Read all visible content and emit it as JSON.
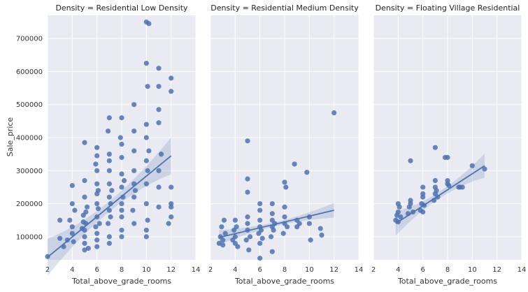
{
  "chart_data": {
    "type": "scatter",
    "facet_variable": "Density",
    "colors": {
      "point": "#4c72b0",
      "line": "#4c72b0",
      "band": "#4c72b0",
      "panel_bg": "#eaeaf2",
      "grid": "#ffffff"
    },
    "xlabel": "Total_above_grade_rooms",
    "ylabel": "Sale_price",
    "xlim": [
      2,
      14
    ],
    "ylim": [
      30000,
      770000
    ],
    "xticks": [
      2,
      4,
      6,
      8,
      10,
      12,
      14
    ],
    "yticks": [
      100000,
      200000,
      300000,
      400000,
      500000,
      600000,
      700000
    ],
    "grid": true,
    "panels": [
      {
        "title": "Density = Residential Low Density",
        "regression": {
          "x": [
            2,
            12
          ],
          "y": [
            38000,
            345000
          ]
        },
        "points": [
          [
            2,
            40000
          ],
          [
            3,
            150000
          ],
          [
            3,
            95000
          ],
          [
            3.3,
            70000
          ],
          [
            3.6,
            90000
          ],
          [
            3.8,
            150000
          ],
          [
            4,
            130000
          ],
          [
            4,
            110000
          ],
          [
            4,
            200000
          ],
          [
            4,
            255000
          ],
          [
            4.2,
            180000
          ],
          [
            4.1,
            85000
          ],
          [
            4.9,
            165000
          ],
          [
            5,
            220000
          ],
          [
            5,
            270000
          ],
          [
            5,
            120000
          ],
          [
            5,
            100000
          ],
          [
            5,
            80000
          ],
          [
            5,
            60000
          ],
          [
            5,
            385000
          ],
          [
            5.1,
            140000
          ],
          [
            5.2,
            190000
          ],
          [
            5.3,
            65000
          ],
          [
            4.8,
            125000
          ],
          [
            4.9,
            145000
          ],
          [
            5.1,
            175000
          ],
          [
            5.9,
            130000
          ],
          [
            6,
            160000
          ],
          [
            6,
            200000
          ],
          [
            6,
            230000
          ],
          [
            6,
            260000
          ],
          [
            6,
            300000
          ],
          [
            6,
            370000
          ],
          [
            6,
            110000
          ],
          [
            6,
            90000
          ],
          [
            6,
            70000
          ],
          [
            6.1,
            185000
          ],
          [
            6.2,
            140000
          ],
          [
            5.9,
            320000
          ],
          [
            6.1,
            240000
          ],
          [
            6,
            345000
          ],
          [
            6.9,
            140000
          ],
          [
            7,
            180000
          ],
          [
            7,
            220000
          ],
          [
            7,
            260000
          ],
          [
            7,
            300000
          ],
          [
            7,
            350000
          ],
          [
            7,
            460000
          ],
          [
            7,
            100000
          ],
          [
            7,
            80000
          ],
          [
            7.1,
            200000
          ],
          [
            7.2,
            240000
          ],
          [
            6.9,
            420000
          ],
          [
            7.1,
            160000
          ],
          [
            7,
            330000
          ],
          [
            8,
            160000
          ],
          [
            8,
            200000
          ],
          [
            8,
            250000
          ],
          [
            8,
            290000
          ],
          [
            8,
            340000
          ],
          [
            8,
            380000
          ],
          [
            8,
            460000
          ],
          [
            8,
            120000
          ],
          [
            8,
            100000
          ],
          [
            8.1,
            220000
          ],
          [
            8.2,
            270000
          ],
          [
            7.9,
            400000
          ],
          [
            8,
            180000
          ],
          [
            8.9,
            180000
          ],
          [
            9,
            220000
          ],
          [
            9,
            260000
          ],
          [
            9,
            300000
          ],
          [
            9,
            360000
          ],
          [
            9,
            500000
          ],
          [
            9,
            140000
          ],
          [
            9.1,
            240000
          ],
          [
            9,
            420000
          ],
          [
            10,
            750000
          ],
          [
            10.2,
            745000
          ],
          [
            10,
            625000
          ],
          [
            10.1,
            555000
          ],
          [
            10,
            440000
          ],
          [
            10,
            400000
          ],
          [
            10,
            330000
          ],
          [
            10,
            260000
          ],
          [
            10,
            200000
          ],
          [
            10,
            120000
          ],
          [
            10,
            100000
          ],
          [
            10.1,
            300000
          ],
          [
            10.2,
            360000
          ],
          [
            10.1,
            150000
          ],
          [
            11,
            610000
          ],
          [
            11,
            555000
          ],
          [
            11,
            485000
          ],
          [
            11,
            445000
          ],
          [
            11,
            300000
          ],
          [
            11,
            250000
          ],
          [
            11,
            190000
          ],
          [
            11.2,
            350000
          ],
          [
            12,
            580000
          ],
          [
            12,
            540000
          ],
          [
            12,
            250000
          ],
          [
            12,
            200000
          ],
          [
            12,
            190000
          ],
          [
            12,
            160000
          ],
          [
            11.8,
            140000
          ]
        ]
      },
      {
        "title": "Density = Residential Medium Density",
        "regression": {
          "x": [
            2.7,
            12
          ],
          "y": [
            98000,
            180000
          ]
        },
        "points": [
          [
            2.7,
            80000
          ],
          [
            2.8,
            100000
          ],
          [
            2.9,
            130000
          ],
          [
            3,
            90000
          ],
          [
            3,
            75000
          ],
          [
            3.1,
            150000
          ],
          [
            3.2,
            110000
          ],
          [
            3.8,
            90000
          ],
          [
            3.9,
            120000
          ],
          [
            4,
            80000
          ],
          [
            4,
            150000
          ],
          [
            4,
            100000
          ],
          [
            4.1,
            130000
          ],
          [
            4.2,
            70000
          ],
          [
            4.9,
            90000
          ],
          [
            5,
            120000
          ],
          [
            5,
            140000
          ],
          [
            5,
            160000
          ],
          [
            5,
            235000
          ],
          [
            5,
            275000
          ],
          [
            5,
            390000
          ],
          [
            5.1,
            60000
          ],
          [
            5.2,
            100000
          ],
          [
            5.9,
            110000
          ],
          [
            6,
            130000
          ],
          [
            6,
            150000
          ],
          [
            6,
            180000
          ],
          [
            6,
            200000
          ],
          [
            6,
            35000
          ],
          [
            6,
            80000
          ],
          [
            6.1,
            120000
          ],
          [
            6.2,
            95000
          ],
          [
            6.9,
            100000
          ],
          [
            7,
            130000
          ],
          [
            7,
            150000
          ],
          [
            7,
            170000
          ],
          [
            7,
            200000
          ],
          [
            7,
            55000
          ],
          [
            7.1,
            120000
          ],
          [
            7.2,
            140000
          ],
          [
            7.9,
            110000
          ],
          [
            8,
            140000
          ],
          [
            8,
            160000
          ],
          [
            8,
            190000
          ],
          [
            8,
            265000
          ],
          [
            8.1,
            250000
          ],
          [
            8.2,
            130000
          ],
          [
            8.8,
            320000
          ],
          [
            9,
            150000
          ],
          [
            9,
            130000
          ],
          [
            9.2,
            140000
          ],
          [
            9.8,
            295000
          ],
          [
            10,
            160000
          ],
          [
            10,
            140000
          ],
          [
            10.1,
            90000
          ],
          [
            10.9,
            125000
          ],
          [
            11,
            105000
          ],
          [
            12,
            475000
          ]
        ]
      },
      {
        "title": "Density = Floating Village Residential",
        "regression": {
          "x": [
            3.8,
            11
          ],
          "y": [
            140000,
            315000
          ]
        },
        "points": [
          [
            3.8,
            150000
          ],
          [
            3.9,
            165000
          ],
          [
            4,
            145000
          ],
          [
            4,
            175000
          ],
          [
            4.1,
            190000
          ],
          [
            4,
            200000
          ],
          [
            4.2,
            160000
          ],
          [
            4.8,
            170000
          ],
          [
            4.9,
            190000
          ],
          [
            5,
            200000
          ],
          [
            5,
            210000
          ],
          [
            5,
            330000
          ],
          [
            5.2,
            175000
          ],
          [
            5.8,
            180000
          ],
          [
            5.9,
            200000
          ],
          [
            6,
            220000
          ],
          [
            6,
            230000
          ],
          [
            6,
            250000
          ],
          [
            6.1,
            195000
          ],
          [
            6,
            175000
          ],
          [
            6.9,
            210000
          ],
          [
            7,
            230000
          ],
          [
            7,
            250000
          ],
          [
            7,
            270000
          ],
          [
            7,
            370000
          ],
          [
            7.1,
            240000
          ],
          [
            7.2,
            220000
          ],
          [
            7.8,
            340000
          ],
          [
            8,
            260000
          ],
          [
            8,
            270000
          ],
          [
            8,
            340000
          ],
          [
            8.1,
            255000
          ],
          [
            8.9,
            250000
          ],
          [
            9,
            250000
          ],
          [
            9.2,
            250000
          ],
          [
            10,
            315000
          ],
          [
            11,
            305000
          ]
        ]
      }
    ]
  }
}
